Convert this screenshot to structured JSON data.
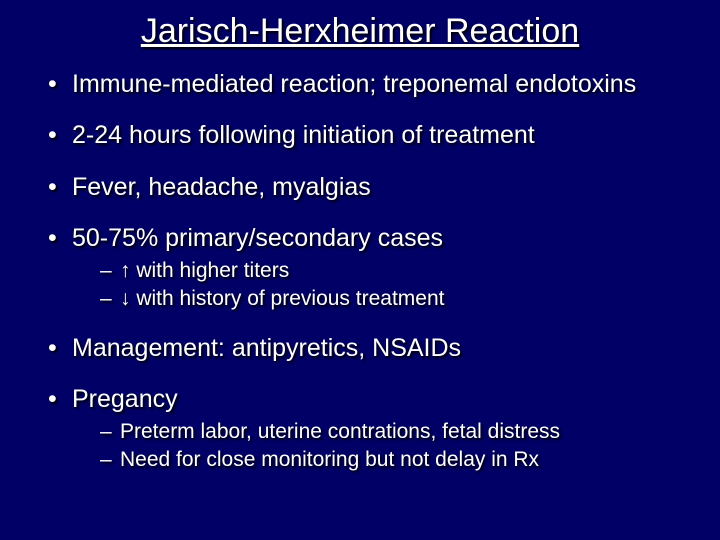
{
  "background_color": "#000066",
  "text_color": "#ffffff",
  "shadow_color": "#000000",
  "title": {
    "text": "Jarisch-Herxheimer Reaction",
    "fontsize": 34,
    "underline": true
  },
  "body_fontsize_lvl1": 25,
  "body_fontsize_lvl2": 21,
  "bullets": [
    {
      "text": "Immune-mediated reaction; treponemal endotoxins"
    },
    {
      "text": "2-24 hours following initiation of treatment"
    },
    {
      "text": "Fever, headache, myalgias"
    },
    {
      "text": "50-75% primary/secondary cases",
      "sub": [
        "↑ with higher titers",
        "↓ with history of previous treatment"
      ]
    },
    {
      "text": "Management: antipyretics, NSAIDs"
    },
    {
      "text": "Pregancy",
      "sub": [
        "Preterm labor, uterine contrations, fetal distress",
        "Need for close monitoring but not delay in Rx"
      ]
    }
  ]
}
